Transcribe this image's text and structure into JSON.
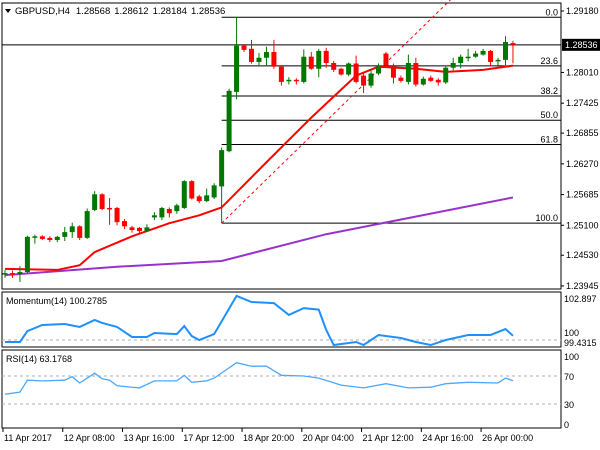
{
  "header": {
    "arrow_icon": "triangle-down-icon",
    "symbol": "GBPUSD,H4",
    "open": "1.28568",
    "high": "1.28612",
    "low": "1.28184",
    "close": "1.28536"
  },
  "colors": {
    "bull": "#007800",
    "bear": "#ff0000",
    "ma_fast": "#ff0000",
    "ma_slow": "#9932cc",
    "osc": "#1e90ff",
    "rsi": "#4aa8ff",
    "grid_dash": "#b0b0b0",
    "fib": "#000000"
  },
  "price_axis": {
    "labels": [
      "1.29180",
      "1.28010",
      "1.27425",
      "1.26855",
      "1.26270",
      "1.25685",
      "1.25100",
      "1.24530",
      "1.23945"
    ],
    "current": "1.28536"
  },
  "fib": {
    "high": 1.2906,
    "low": 1.2514,
    "levels": [
      {
        "label": "0.0",
        "ratio": 0
      },
      {
        "label": "23.6",
        "ratio": 0.236
      },
      {
        "label": "38.2",
        "ratio": 0.382
      },
      {
        "label": "50.0",
        "ratio": 0.5
      },
      {
        "label": "61.8",
        "ratio": 0.618
      },
      {
        "label": "100.0",
        "ratio": 1
      }
    ]
  },
  "momentum": {
    "title": "Momentum(14) 100.2785",
    "axis": [
      "102.897",
      "100",
      "99.4315"
    ]
  },
  "rsi": {
    "title": "RSI(14) 63.1768",
    "axis": [
      "100",
      "70",
      "30",
      "0"
    ]
  },
  "time_axis": [
    {
      "label": "11 Apr 2017",
      "i": 0
    },
    {
      "label": "12 Apr 08:00",
      "i": 8
    },
    {
      "label": "13 Apr 16:00",
      "i": 16
    },
    {
      "label": "17 Apr 12:00",
      "i": 24
    },
    {
      "label": "18 Apr 20:00",
      "i": 32
    },
    {
      "label": "20 Apr 04:00",
      "i": 40
    },
    {
      "label": "21 Apr 12:00",
      "i": 48
    },
    {
      "label": "24 Apr 16:00",
      "i": 56
    },
    {
      "label": "26 Apr 00:00",
      "i": 64
    }
  ],
  "chart_data": {
    "type": "candlestick",
    "title": "GBPUSD,H4",
    "ylim": [
      1.23945,
      1.2918
    ],
    "candles_ohlc": [
      [
        1.2417,
        1.2425,
        1.241,
        1.2419
      ],
      [
        1.2419,
        1.2424,
        1.241,
        1.2417
      ],
      [
        1.2417,
        1.2432,
        1.2402,
        1.2421
      ],
      [
        1.2421,
        1.249,
        1.2419,
        1.2488
      ],
      [
        1.2488,
        1.2492,
        1.2475,
        1.2489
      ],
      [
        1.2489,
        1.2491,
        1.2482,
        1.2484
      ],
      [
        1.2486,
        1.2489,
        1.2478,
        1.2482
      ],
      [
        1.2482,
        1.249,
        1.2478,
        1.2488
      ],
      [
        1.2488,
        1.2507,
        1.248,
        1.2497
      ],
      [
        1.2497,
        1.2515,
        1.2486,
        1.2508
      ],
      [
        1.2508,
        1.251,
        1.2482,
        1.2486
      ],
      [
        1.2486,
        1.2542,
        1.2484,
        1.2537
      ],
      [
        1.2539,
        1.2575,
        1.2537,
        1.2569
      ],
      [
        1.2569,
        1.2571,
        1.2539,
        1.2541
      ],
      [
        1.2543,
        1.2562,
        1.2511,
        1.2542
      ],
      [
        1.2543,
        1.2545,
        1.251,
        1.2516
      ],
      [
        1.2518,
        1.2522,
        1.2503,
        1.2508
      ],
      [
        1.2506,
        1.2509,
        1.2496,
        1.2501
      ],
      [
        1.2505,
        1.2507,
        1.2495,
        1.2499
      ],
      [
        1.2499,
        1.2512,
        1.2497,
        1.2506
      ],
      [
        1.2525,
        1.2535,
        1.252,
        1.2529
      ],
      [
        1.2525,
        1.2545,
        1.252,
        1.2543
      ],
      [
        1.2541,
        1.2544,
        1.2525,
        1.2533
      ],
      [
        1.2537,
        1.2551,
        1.2532,
        1.2548
      ],
      [
        1.2543,
        1.2596,
        1.2541,
        1.2594
      ],
      [
        1.2594,
        1.2596,
        1.2559,
        1.2561
      ],
      [
        1.2565,
        1.2568,
        1.2552,
        1.2556
      ],
      [
        1.2556,
        1.258,
        1.2554,
        1.2567
      ],
      [
        1.2563,
        1.259,
        1.256,
        1.2586
      ],
      [
        1.2584,
        1.2658,
        1.2514,
        1.2653
      ],
      [
        1.2651,
        1.277,
        1.2649,
        1.2766
      ],
      [
        1.2764,
        1.2907,
        1.275,
        1.2852
      ],
      [
        1.2852,
        1.2855,
        1.284,
        1.2844
      ],
      [
        1.2846,
        1.2863,
        1.2818,
        1.2821
      ],
      [
        1.2821,
        1.2838,
        1.2813,
        1.2829
      ],
      [
        1.2829,
        1.285,
        1.2813,
        1.284
      ],
      [
        1.284,
        1.2863,
        1.2808,
        1.2812
      ],
      [
        1.2812,
        1.2815,
        1.2776,
        1.2783
      ],
      [
        1.2787,
        1.2792,
        1.2778,
        1.2787
      ],
      [
        1.2787,
        1.279,
        1.2778,
        1.2785
      ],
      [
        1.2783,
        1.2845,
        1.278,
        1.2831
      ],
      [
        1.2831,
        1.284,
        1.2806,
        1.2808
      ],
      [
        1.2808,
        1.2846,
        1.2792,
        1.2842
      ],
      [
        1.2842,
        1.2848,
        1.281,
        1.2819
      ],
      [
        1.2819,
        1.2823,
        1.2802,
        1.2806
      ],
      [
        1.2808,
        1.281,
        1.2795,
        1.2797
      ],
      [
        1.2797,
        1.282,
        1.2794,
        1.2818
      ],
      [
        1.2818,
        1.2833,
        1.278,
        1.2783
      ],
      [
        1.2795,
        1.28,
        1.2762,
        1.2776
      ],
      [
        1.2776,
        1.2806,
        1.2772,
        1.2799
      ],
      [
        1.2799,
        1.2818,
        1.2796,
        1.2812
      ],
      [
        1.2837,
        1.284,
        1.281,
        1.2814
      ],
      [
        1.2812,
        1.2818,
        1.278,
        1.2791
      ],
      [
        1.2791,
        1.2795,
        1.2782,
        1.2785
      ],
      [
        1.2783,
        1.2835,
        1.2778,
        1.2819
      ],
      [
        1.2819,
        1.2829,
        1.2774,
        1.2778
      ],
      [
        1.2778,
        1.2793,
        1.2776,
        1.2789
      ],
      [
        1.2791,
        1.2795,
        1.2783,
        1.2785
      ],
      [
        1.2787,
        1.279,
        1.2776,
        1.2782
      ],
      [
        1.2782,
        1.2814,
        1.2779,
        1.281
      ],
      [
        1.281,
        1.2829,
        1.2805,
        1.2819
      ],
      [
        1.2819,
        1.2835,
        1.2809,
        1.2831
      ],
      [
        1.2831,
        1.2846,
        1.2822,
        1.2831
      ],
      [
        1.2831,
        1.2842,
        1.2829,
        1.2837
      ],
      [
        1.2835,
        1.2846,
        1.2833,
        1.2842
      ],
      [
        1.2842,
        1.2844,
        1.2814,
        1.2821
      ],
      [
        1.2823,
        1.2829,
        1.2814,
        1.2825
      ],
      [
        1.2825,
        1.287,
        1.2815,
        1.2859
      ],
      [
        1.28568,
        1.28612,
        1.28184,
        1.28536
      ]
    ],
    "ma_fast": [
      [
        0,
        1.2427
      ],
      [
        7,
        1.2425
      ],
      [
        10,
        1.2434
      ],
      [
        12,
        1.2459
      ],
      [
        17,
        1.2489
      ],
      [
        22,
        1.2514
      ],
      [
        26,
        1.2529
      ],
      [
        29,
        1.2544
      ],
      [
        35,
        1.263
      ],
      [
        41,
        1.2715
      ],
      [
        47,
        1.2795
      ],
      [
        50,
        1.2812
      ],
      [
        55,
        1.2808
      ],
      [
        59,
        1.2802
      ],
      [
        64,
        1.2806
      ],
      [
        68,
        1.2814
      ]
    ],
    "ma_slow": [
      [
        0,
        1.2415
      ],
      [
        15,
        1.2431
      ],
      [
        29,
        1.2442
      ],
      [
        43,
        1.2493
      ],
      [
        68,
        1.2563
      ]
    ],
    "momentum": [
      [
        0,
        99.87
      ],
      [
        2,
        99.87
      ],
      [
        3,
        100.59
      ],
      [
        5,
        100.99
      ],
      [
        8,
        101.05
      ],
      [
        10,
        100.86
      ],
      [
        12,
        101.32
      ],
      [
        13,
        101.12
      ],
      [
        15,
        100.86
      ],
      [
        17,
        100.2
      ],
      [
        19,
        100.2
      ],
      [
        20,
        100.46
      ],
      [
        23,
        100.39
      ],
      [
        24,
        100.92
      ],
      [
        25,
        100.26
      ],
      [
        26,
        100.0
      ],
      [
        28,
        100.39
      ],
      [
        31,
        102.9
      ],
      [
        33,
        102.5
      ],
      [
        36,
        102.43
      ],
      [
        38,
        101.65
      ],
      [
        40,
        102.1
      ],
      [
        42,
        102.0
      ],
      [
        43,
        100.66
      ],
      [
        44,
        99.67
      ],
      [
        47,
        99.87
      ],
      [
        48,
        99.67
      ],
      [
        50,
        100.33
      ],
      [
        53,
        100.13
      ],
      [
        55,
        99.87
      ],
      [
        57,
        99.67
      ],
      [
        59,
        100.0
      ],
      [
        62,
        100.33
      ],
      [
        65,
        100.33
      ],
      [
        67,
        100.72
      ],
      [
        68,
        100.2785
      ]
    ],
    "rsi": [
      [
        0,
        44
      ],
      [
        2,
        47
      ],
      [
        3,
        64
      ],
      [
        5,
        63
      ],
      [
        8,
        64
      ],
      [
        9,
        69
      ],
      [
        10,
        60
      ],
      [
        12,
        74
      ],
      [
        13,
        66
      ],
      [
        14,
        64
      ],
      [
        15,
        56
      ],
      [
        18,
        53
      ],
      [
        20,
        63
      ],
      [
        23,
        63
      ],
      [
        24,
        71
      ],
      [
        25,
        61
      ],
      [
        27,
        63
      ],
      [
        28,
        67
      ],
      [
        31,
        89
      ],
      [
        33,
        84
      ],
      [
        35,
        84
      ],
      [
        37,
        71
      ],
      [
        40,
        70
      ],
      [
        42,
        67
      ],
      [
        45,
        57
      ],
      [
        48,
        53
      ],
      [
        51,
        59
      ],
      [
        54,
        53
      ],
      [
        57,
        54
      ],
      [
        59,
        59
      ],
      [
        62,
        61
      ],
      [
        66,
        60
      ],
      [
        67,
        67
      ],
      [
        68,
        63.1768
      ]
    ]
  }
}
